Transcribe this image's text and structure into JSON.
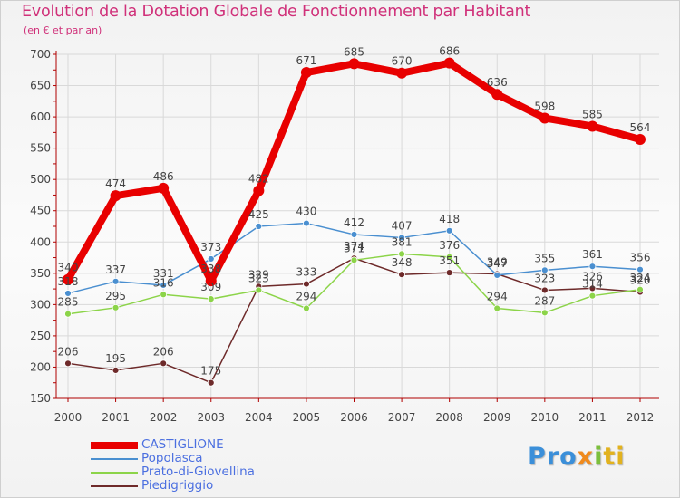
{
  "title": "Evolution de la Dotation Globale de Fonctionnement par Habitant",
  "subtitle": "(en € et par an)",
  "logo": {
    "p1": "Pro",
    "p2": "x",
    "p3": "i",
    "p4": "ti"
  },
  "colors": {
    "CASTIGLIONE": "#e80000",
    "Popolasca": "#4a8fd0",
    "Prato-di-Giovellina": "#8cd449",
    "Piedigriggio": "#6e2a2a",
    "axis": "#b00000",
    "grid": "#d9d9d9",
    "label": "#444444"
  },
  "chart_data": {
    "type": "line",
    "title": "Evolution de la Dotation Globale de Fonctionnement par Habitant",
    "subtitle": "(en € et par an)",
    "xlabel": "",
    "ylabel": "",
    "ylim": [
      150,
      700
    ],
    "yticks": [
      150,
      200,
      250,
      300,
      350,
      400,
      450,
      500,
      550,
      600,
      650,
      700
    ],
    "x": [
      "2000",
      "2001",
      "2002",
      "2003",
      "2004",
      "2005",
      "2006",
      "2007",
      "2008",
      "2009",
      "2010",
      "2011",
      "2012"
    ],
    "legend_position": "bottom-left",
    "series": [
      {
        "name": "CASTIGLIONE",
        "values": [
          340,
          474,
          486,
          338,
          482,
          671,
          685,
          670,
          686,
          636,
          598,
          585,
          564
        ]
      },
      {
        "name": "Popolasca",
        "values": [
          318,
          337,
          331,
          373,
          425,
          430,
          412,
          407,
          418,
          347,
          355,
          361,
          356
        ]
      },
      {
        "name": "Prato-di-Giovellina",
        "values": [
          285,
          295,
          316,
          309,
          323,
          294,
          371,
          381,
          376,
          294,
          287,
          314,
          324
        ]
      },
      {
        "name": "Piedigriggio",
        "values": [
          206,
          195,
          206,
          175,
          329,
          333,
          374,
          348,
          351,
          349,
          323,
          326,
          320
        ]
      }
    ]
  }
}
